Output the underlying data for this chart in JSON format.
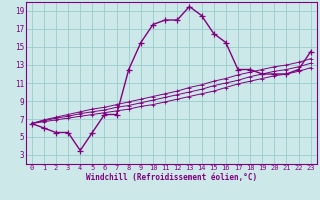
{
  "xlabel": "Windchill (Refroidissement éolien,°C)",
  "hours": [
    0,
    1,
    2,
    3,
    4,
    5,
    6,
    7,
    8,
    9,
    10,
    11,
    12,
    13,
    14,
    15,
    16,
    17,
    18,
    19,
    20,
    21,
    22,
    23
  ],
  "temp": [
    6.5,
    6.0,
    5.5,
    5.5,
    3.5,
    5.5,
    7.5,
    7.5,
    12.5,
    15.5,
    17.5,
    18.0,
    18.0,
    19.5,
    18.5,
    16.5,
    15.5,
    12.5,
    12.5,
    12.0,
    12.0,
    12.0,
    12.5,
    14.5
  ],
  "windchill1": [
    6.5,
    6.7,
    6.9,
    7.1,
    7.3,
    7.5,
    7.7,
    7.9,
    8.1,
    8.4,
    8.6,
    8.9,
    9.2,
    9.5,
    9.8,
    10.1,
    10.5,
    10.9,
    11.2,
    11.5,
    11.8,
    12.0,
    12.3,
    12.7
  ],
  "windchill2": [
    6.5,
    6.8,
    7.1,
    7.3,
    7.6,
    7.8,
    8.0,
    8.3,
    8.5,
    8.8,
    9.1,
    9.4,
    9.7,
    10.0,
    10.3,
    10.7,
    11.0,
    11.3,
    11.7,
    12.0,
    12.3,
    12.5,
    12.8,
    13.2
  ],
  "windchill3": [
    6.5,
    6.9,
    7.2,
    7.5,
    7.8,
    8.1,
    8.3,
    8.6,
    8.9,
    9.2,
    9.5,
    9.8,
    10.1,
    10.5,
    10.8,
    11.2,
    11.5,
    11.9,
    12.2,
    12.5,
    12.8,
    13.0,
    13.3,
    13.7
  ],
  "line_color": "#800080",
  "bg_color": "#cce8e8",
  "grid_color": "#99cccc",
  "ylim": [
    2,
    20
  ],
  "yticks": [
    3,
    5,
    7,
    9,
    11,
    13,
    15,
    17,
    19
  ],
  "xticks": [
    0,
    1,
    2,
    3,
    4,
    5,
    6,
    7,
    8,
    9,
    10,
    11,
    12,
    13,
    14,
    15,
    16,
    17,
    18,
    19,
    20,
    21,
    22,
    23
  ],
  "marker": "+",
  "markersize": 4,
  "linewidth": 1.0
}
